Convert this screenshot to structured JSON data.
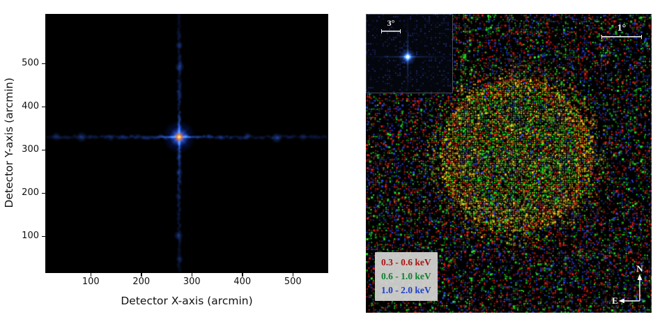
{
  "figure": {
    "background": "#ffffff"
  },
  "left_panel": {
    "xlabel": "Detector X-axis (arcmin)",
    "ylabel": "Detector Y-axis (arcmin)"
  },
  "right_panel": {
    "scalebar_main": {
      "label": "1°"
    },
    "scalebar_inset": {
      "label": "3°"
    },
    "legend": [
      {
        "label": "0.3 - 0.6 keV",
        "color": "#a81414"
      },
      {
        "label": "0.6 - 1.0 keV",
        "color": "#0f8030"
      },
      {
        "label": "1.0 - 2.0 keV",
        "color": "#1d3ecb"
      }
    ],
    "compass": {
      "north": "N",
      "east": "E"
    }
  },
  "chart_data": [
    {
      "type": "heatmap",
      "title": "",
      "xlabel": "Detector X-axis (arcmin)",
      "ylabel": "Detector Y-axis (arcmin)",
      "x_ticks": [
        100,
        200,
        300,
        400,
        500
      ],
      "y_ticks": [
        100,
        200,
        300,
        400,
        500
      ],
      "xlim": [
        10,
        570
      ],
      "ylim": [
        15,
        615
      ],
      "source_center": [
        275,
        330
      ],
      "grid": false,
      "style": "black background, blue cross-shaped telescope PSF arms with clumps, bright yellow-orange-white core with cyan halo"
    },
    {
      "type": "heatmap",
      "title": "",
      "bands": [
        {
          "range": "0.3 - 0.6 keV",
          "display_color": "red"
        },
        {
          "range": "0.6 - 1.0 keV",
          "display_color": "green"
        },
        {
          "range": "1.0 - 2.0 keV",
          "display_color": "blue"
        }
      ],
      "remnant": {
        "center_frac": [
          0.524,
          0.468
        ],
        "radius_frac": 0.268
      },
      "inset": {
        "w_frac": 0.305,
        "h_frac": 0.266,
        "scalebar": "3°",
        "content": "point source with cross-shaped PSF on dark blue field"
      },
      "scalebar": "1°",
      "orientation": {
        "up": "N",
        "left": "E"
      },
      "legend_position": "bottom-left"
    }
  ]
}
